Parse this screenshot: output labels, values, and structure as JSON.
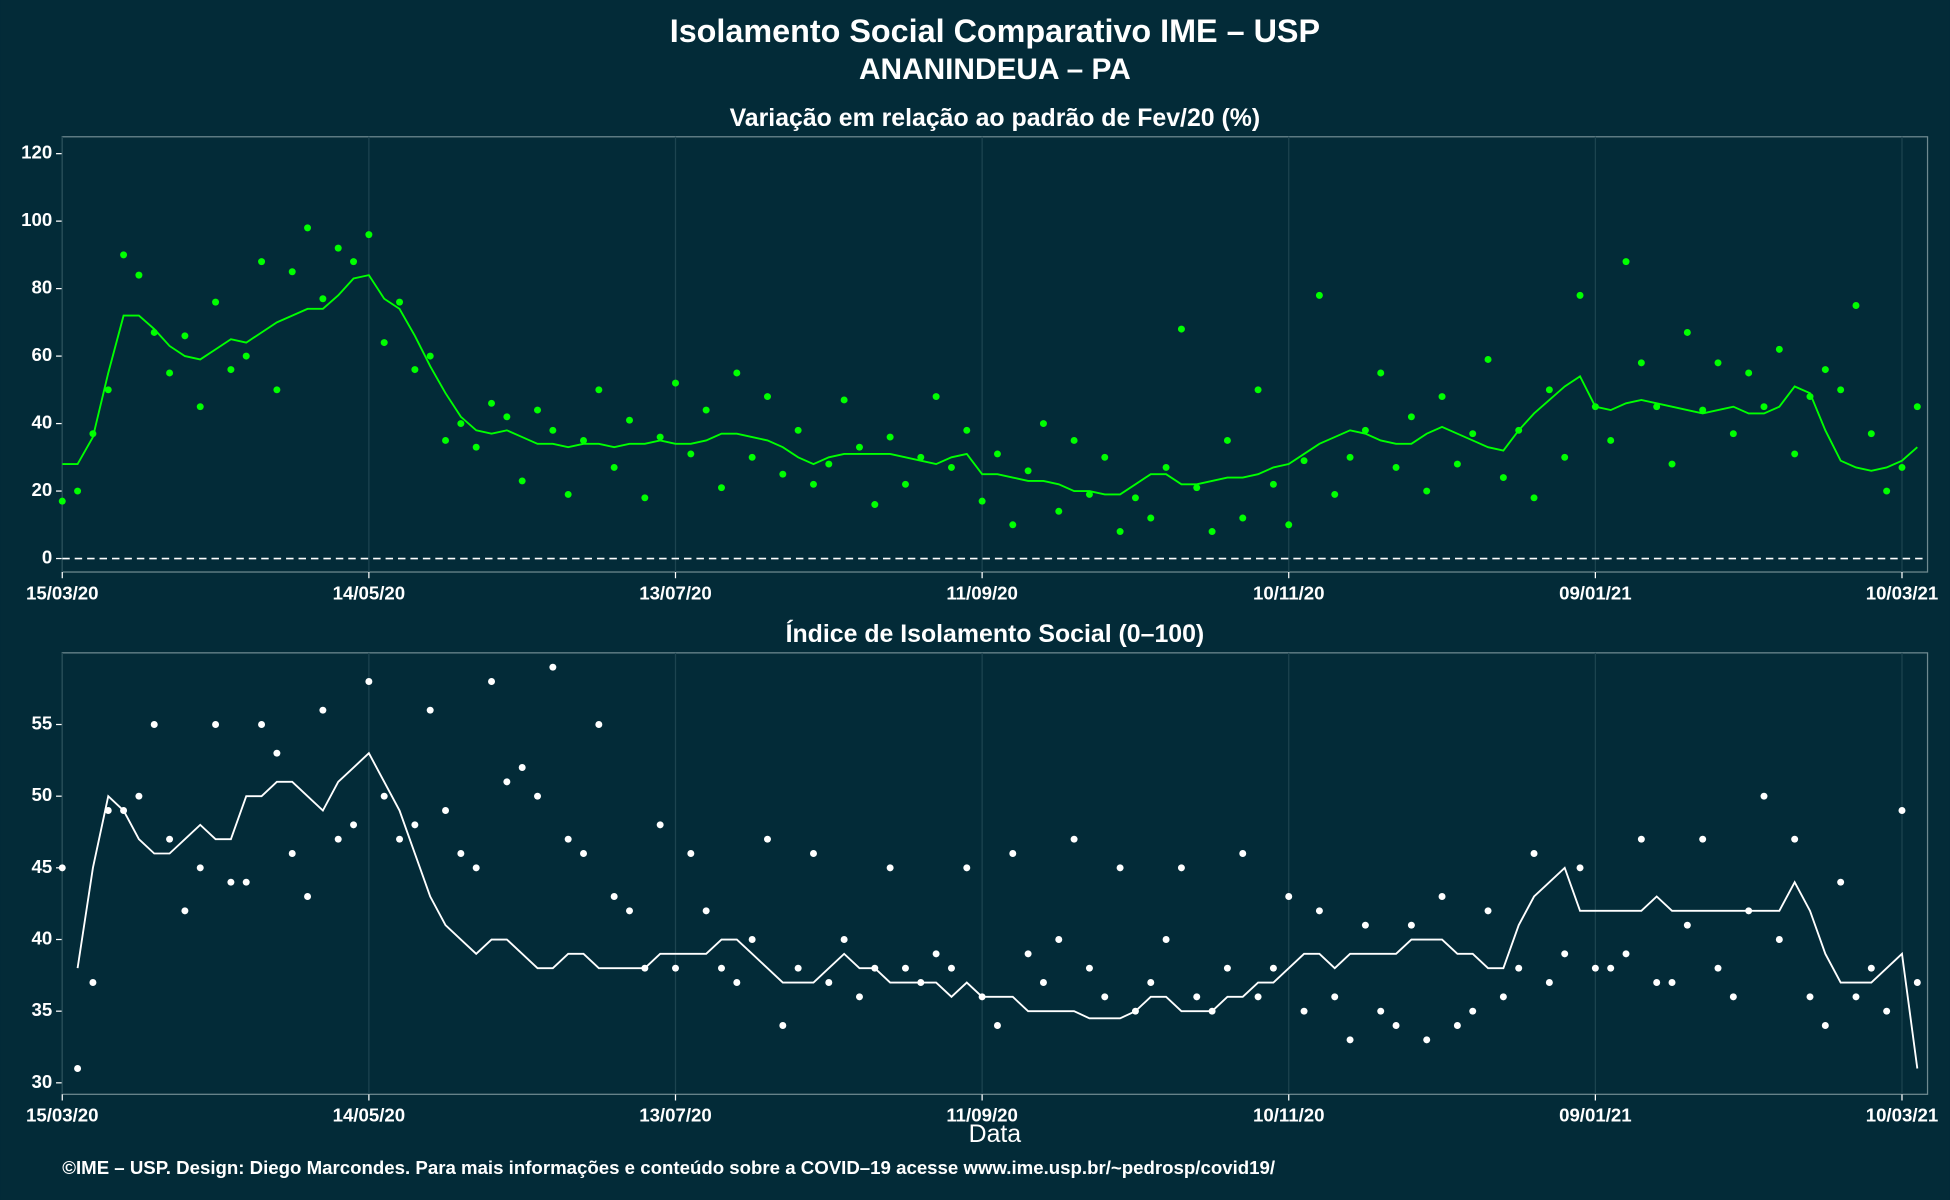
{
  "title": "Isolamento Social Comparativo IME – USP",
  "subtitle": "ANANINDEUA – PA",
  "caption": "©IME – USP. Design: Diego Marcondes. Para mais informações e conteúdo sobre a COVID–19 acesse www.ime.usp.br/~pedrosp/covid19/",
  "chart_data": [
    {
      "type": "scatter",
      "title": "Variação em relação ao padrão de Fev/20 (%)",
      "x": [
        0,
        3,
        6,
        9,
        12,
        15,
        18,
        21,
        24,
        27,
        30,
        33,
        36,
        39,
        42,
        45,
        48,
        51,
        54,
        57,
        60,
        63,
        66,
        69,
        72,
        75,
        78,
        81,
        84,
        87,
        90,
        93,
        96,
        99,
        102,
        105,
        108,
        111,
        114,
        117,
        120,
        123,
        126,
        129,
        132,
        135,
        138,
        141,
        144,
        147,
        150,
        153,
        156,
        159,
        162,
        165,
        168,
        171,
        174,
        177,
        180,
        183,
        186,
        189,
        192,
        195,
        198,
        201,
        204,
        207,
        210,
        213,
        216,
        219,
        222,
        225,
        228,
        231,
        234,
        237,
        240,
        243,
        246,
        249,
        252,
        255,
        258,
        261,
        264,
        267,
        270,
        273,
        276,
        279,
        282,
        285,
        288,
        291,
        294,
        297,
        300,
        303,
        306,
        309,
        312,
        315,
        318,
        321,
        324,
        327,
        330,
        333,
        336,
        339,
        342,
        345,
        348,
        351,
        354,
        357,
        360,
        363
      ],
      "xlim": [
        0,
        365
      ],
      "xticks": [
        {
          "value": 0,
          "label": "15/03/20"
        },
        {
          "value": 60,
          "label": "14/05/20"
        },
        {
          "value": 120,
          "label": "13/07/20"
        },
        {
          "value": 180,
          "label": "11/09/20"
        },
        {
          "value": 240,
          "label": "10/11/20"
        },
        {
          "value": 300,
          "label": "09/01/21"
        },
        {
          "value": 360,
          "label": "10/03/21"
        }
      ],
      "ylim": [
        -4,
        125
      ],
      "yticks": [
        0,
        20,
        40,
        60,
        80,
        100,
        120
      ],
      "grid": "x",
      "hline": 0,
      "series": [
        {
          "type": "scatter",
          "color": "#00ff00",
          "values": [
            17,
            20,
            37,
            50,
            90,
            84,
            67,
            55,
            66,
            45,
            76,
            56,
            60,
            88,
            50,
            85,
            98,
            77,
            92,
            88,
            96,
            64,
            76,
            56,
            60,
            35,
            40,
            33,
            46,
            42,
            23,
            44,
            38,
            19,
            35,
            50,
            27,
            41,
            18,
            36,
            52,
            31,
            44,
            21,
            55,
            30,
            48,
            25,
            38,
            22,
            28,
            47,
            33,
            16,
            36,
            22,
            30,
            48,
            27,
            38,
            17,
            31,
            10,
            26,
            40,
            14,
            35,
            19,
            30,
            8,
            18,
            12,
            27,
            68,
            21,
            8,
            35,
            12,
            50,
            22,
            10,
            29,
            78,
            19,
            30,
            38,
            55,
            27,
            42,
            20,
            48,
            28,
            37,
            59,
            24,
            38,
            18,
            50,
            30,
            78,
            45,
            35,
            88,
            58,
            45,
            28,
            67,
            44,
            58,
            37,
            55,
            45,
            62,
            31,
            48,
            56,
            50,
            75,
            37,
            20,
            27,
            45
          ]
        },
        {
          "type": "line",
          "color": "#00ff00",
          "values": [
            28,
            28,
            36,
            55,
            72,
            72,
            68,
            63,
            60,
            59,
            62,
            65,
            64,
            67,
            70,
            72,
            74,
            74,
            78,
            83,
            84,
            77,
            74,
            66,
            57,
            49,
            42,
            38,
            37,
            38,
            36,
            34,
            34,
            33,
            34,
            34,
            33,
            34,
            34,
            35,
            34,
            34,
            35,
            37,
            37,
            36,
            35,
            33,
            30,
            28,
            30,
            31,
            31,
            31,
            31,
            30,
            29,
            28,
            30,
            31,
            25,
            25,
            24,
            23,
            23,
            22,
            20,
            20,
            19,
            19,
            22,
            25,
            25,
            22,
            22,
            23,
            24,
            24,
            25,
            27,
            28,
            31,
            34,
            36,
            38,
            37,
            35,
            34,
            34,
            37,
            39,
            37,
            35,
            33,
            32,
            38,
            43,
            47,
            51,
            54,
            45,
            44,
            46,
            47,
            46,
            45,
            44,
            43,
            44,
            45,
            43,
            43,
            45,
            51,
            49,
            38,
            29,
            27,
            26,
            27,
            29,
            33
          ]
        }
      ]
    },
    {
      "type": "scatter",
      "title": "Índice de Isolamento Social (0–100)",
      "xlabel": "Data",
      "x": [
        0,
        3,
        6,
        9,
        12,
        15,
        18,
        21,
        24,
        27,
        30,
        33,
        36,
        39,
        42,
        45,
        48,
        51,
        54,
        57,
        60,
        63,
        66,
        69,
        72,
        75,
        78,
        81,
        84,
        87,
        90,
        93,
        96,
        99,
        102,
        105,
        108,
        111,
        114,
        117,
        120,
        123,
        126,
        129,
        132,
        135,
        138,
        141,
        144,
        147,
        150,
        153,
        156,
        159,
        162,
        165,
        168,
        171,
        174,
        177,
        180,
        183,
        186,
        189,
        192,
        195,
        198,
        201,
        204,
        207,
        210,
        213,
        216,
        219,
        222,
        225,
        228,
        231,
        234,
        237,
        240,
        243,
        246,
        249,
        252,
        255,
        258,
        261,
        264,
        267,
        270,
        273,
        276,
        279,
        282,
        285,
        288,
        291,
        294,
        297,
        300,
        303,
        306,
        309,
        312,
        315,
        318,
        321,
        324,
        327,
        330,
        333,
        336,
        339,
        342,
        345,
        348,
        351,
        354,
        357,
        360,
        363
      ],
      "xlim": [
        0,
        365
      ],
      "xticks": [
        {
          "value": 0,
          "label": "15/03/20"
        },
        {
          "value": 60,
          "label": "14/05/20"
        },
        {
          "value": 120,
          "label": "13/07/20"
        },
        {
          "value": 180,
          "label": "11/09/20"
        },
        {
          "value": 240,
          "label": "10/11/20"
        },
        {
          "value": 300,
          "label": "09/01/21"
        },
        {
          "value": 360,
          "label": "10/03/21"
        }
      ],
      "ylim": [
        29.2,
        60
      ],
      "yticks": [
        30,
        35,
        40,
        45,
        50,
        55
      ],
      "grid": "x",
      "series": [
        {
          "type": "scatter",
          "color": "#ffffff",
          "values": [
            45,
            31,
            37,
            49,
            49,
            50,
            55,
            47,
            42,
            45,
            55,
            44,
            44,
            55,
            53,
            46,
            43,
            56,
            47,
            48,
            58,
            50,
            47,
            48,
            56,
            49,
            46,
            45,
            58,
            51,
            52,
            50,
            59,
            47,
            46,
            55,
            43,
            42,
            38,
            48,
            38,
            46,
            42,
            38,
            37,
            40,
            47,
            34,
            38,
            46,
            37,
            40,
            36,
            38,
            45,
            38,
            37,
            39,
            38,
            45,
            36,
            34,
            46,
            39,
            37,
            40,
            47,
            38,
            36,
            45,
            35,
            37,
            40,
            45,
            36,
            35,
            38,
            46,
            36,
            38,
            43,
            35,
            42,
            36,
            33,
            41,
            35,
            34,
            41,
            33,
            43,
            34,
            35,
            42,
            36,
            38,
            46,
            37,
            39,
            45,
            38,
            38,
            39,
            47,
            37,
            37,
            41,
            47,
            38,
            36,
            42,
            50,
            40,
            47,
            36,
            34,
            44,
            36,
            38,
            35,
            49,
            37
          ]
        },
        {
          "type": "line",
          "color": "#ffffff",
          "values": [
            null,
            38,
            45,
            50,
            49,
            47,
            46,
            46,
            47,
            48,
            47,
            47,
            50,
            50,
            51,
            51,
            50,
            49,
            51,
            52,
            53,
            51,
            49,
            46,
            43,
            41,
            40,
            39,
            40,
            40,
            39,
            38,
            38,
            39,
            39,
            38,
            38,
            38,
            38,
            39,
            39,
            39,
            39,
            40,
            40,
            39,
            38,
            37,
            37,
            37,
            38,
            39,
            38,
            38,
            37,
            37,
            37,
            37,
            36,
            37,
            36,
            36,
            36,
            35,
            35,
            35,
            35,
            34.5,
            34.5,
            34.5,
            35,
            36,
            36,
            35,
            35,
            35,
            36,
            36,
            37,
            37,
            38,
            39,
            39,
            38,
            39,
            39,
            39,
            39,
            40,
            40,
            40,
            39,
            39,
            38,
            38,
            41,
            43,
            44,
            45,
            42,
            42,
            42,
            42,
            42,
            43,
            42,
            42,
            42,
            42,
            42,
            42,
            42,
            42,
            44,
            42,
            39,
            37,
            37,
            37,
            38,
            39,
            31
          ]
        }
      ]
    }
  ]
}
